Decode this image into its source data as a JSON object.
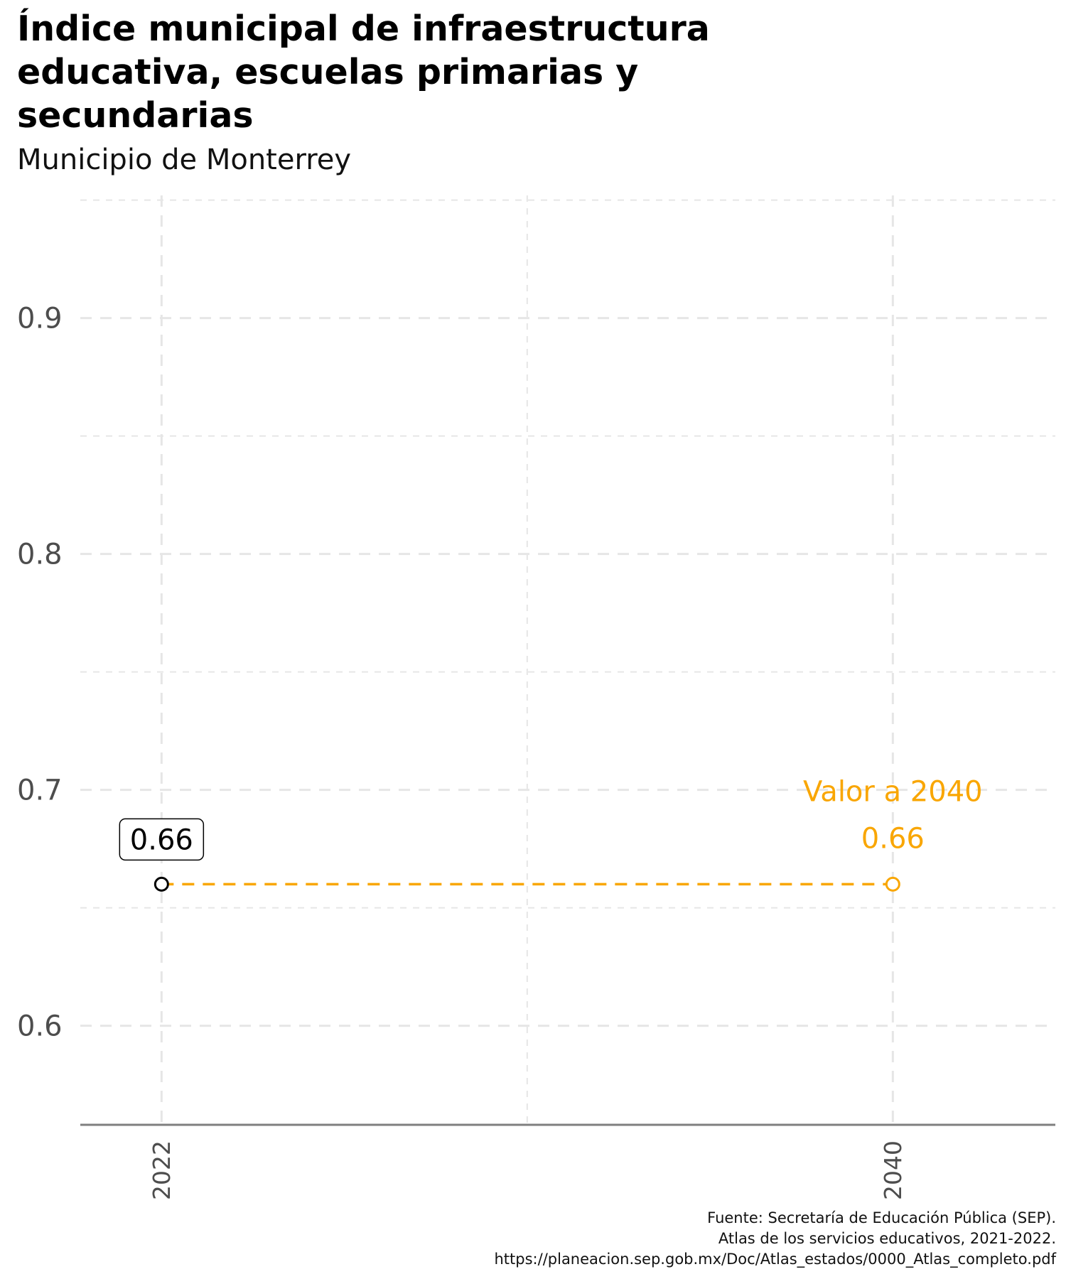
{
  "chart_data": {
    "type": "line",
    "title": "Índice municipal de infraestructura educativa, escuelas primarias y secundarias",
    "subtitle": "Municipio de Monterrey",
    "xlabel": "",
    "ylabel": "",
    "x_ticks": [
      "2022",
      "2040"
    ],
    "y_ticks": [
      "0.6",
      "0.7",
      "0.8",
      "0.9"
    ],
    "xlim": [
      2020,
      2044
    ],
    "ylim": [
      0.558,
      0.952
    ],
    "grid": true,
    "series": [
      {
        "x": [
          2022,
          2040
        ],
        "y": [
          0.66,
          0.66
        ],
        "color": "#f9a602"
      }
    ],
    "points": [
      {
        "x": 2022,
        "y": 0.66,
        "label": "0.66",
        "color": "#000000"
      },
      {
        "x": 2040,
        "y": 0.66,
        "label": "0.66",
        "color": "#f9a602"
      }
    ],
    "annotation": "Valor a 2040",
    "caption": [
      "Fuente: Secretaría de Educación Pública (SEP).",
      "Atlas de los servicios educativos, 2021-2022.",
      "https://planeacion.sep.gob.mx/Doc/Atlas_estados/0000_Atlas_completo.pdf"
    ]
  },
  "colors": {
    "accent": "#f9a602",
    "grid": "#e6e6e6",
    "axis": "#7f7f7f",
    "tick_text": "#4d4d4d"
  }
}
